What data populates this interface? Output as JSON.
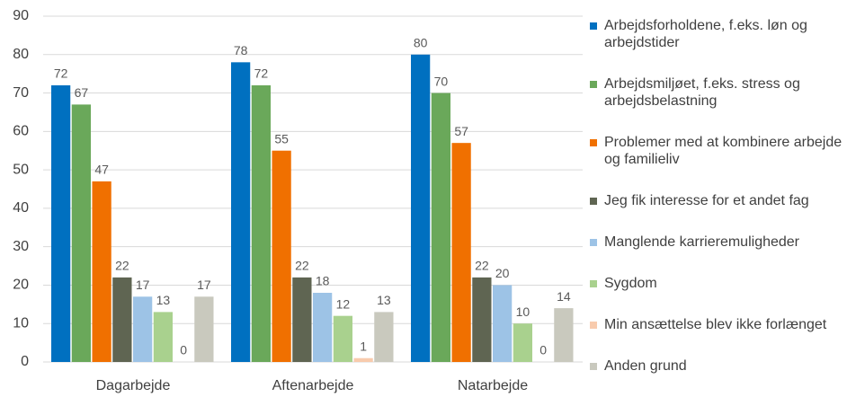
{
  "chart_data": {
    "type": "bar",
    "categories": [
      "Dagarbejde",
      "Aftenarbejde",
      "Natarbejde"
    ],
    "series": [
      {
        "name": "Arbejdsforholdene, f.eks. løn og arbejdstider",
        "color": "#0070c0",
        "values": [
          72,
          78,
          80
        ]
      },
      {
        "name": "Arbejdsmiljøet, f.eks. stress og arbejdsbelastning",
        "color": "#6aa85a",
        "values": [
          67,
          72,
          70
        ]
      },
      {
        "name": "Problemer med at kombinere arbejde og familieliv",
        "color": "#f07000",
        "values": [
          47,
          55,
          57
        ]
      },
      {
        "name": "Jeg fik interesse for et andet fag",
        "color": "#5f6552",
        "values": [
          22,
          22,
          22
        ]
      },
      {
        "name": "Manglende karrieremuligheder",
        "color": "#9dc3e6",
        "values": [
          17,
          18,
          20
        ]
      },
      {
        "name": "Sygdom",
        "color": "#a9d18e",
        "values": [
          13,
          12,
          10
        ]
      },
      {
        "name": "Min ansættelse blev ikke forlænget",
        "color": "#f8cbad",
        "values": [
          0,
          1,
          0
        ]
      },
      {
        "name": "Anden grund",
        "color": "#c9c9be",
        "values": [
          17,
          13,
          14
        ]
      }
    ],
    "ylim": [
      0,
      90
    ],
    "yticks": [
      0,
      10,
      20,
      30,
      40,
      50,
      60,
      70,
      80,
      90
    ],
    "grid": true,
    "legend": "right"
  }
}
